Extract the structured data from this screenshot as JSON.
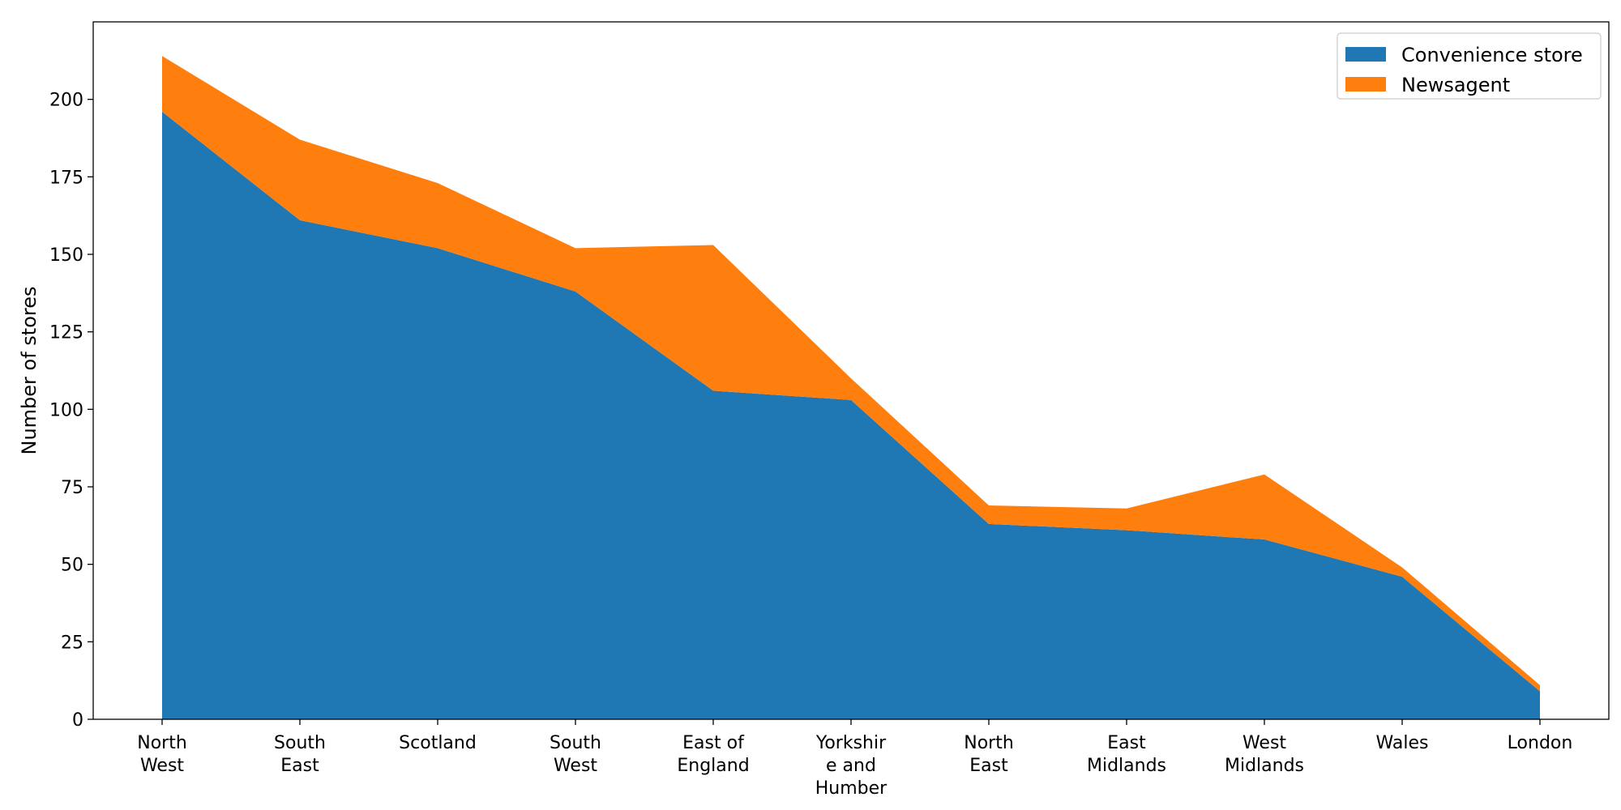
{
  "chart_data": {
    "type": "area",
    "stacked": true,
    "categories": [
      "North West",
      "South East",
      "Scotland",
      "South West",
      "East of England",
      "Yorkshire and Humber",
      "North East",
      "East Midlands",
      "West Midlands",
      "Wales",
      "London"
    ],
    "category_tick_lines": [
      [
        "North",
        "West"
      ],
      [
        "South",
        "East"
      ],
      [
        "Scotland"
      ],
      [
        "South",
        "West"
      ],
      [
        "East of",
        "England"
      ],
      [
        "Yorkshir",
        "e and",
        "Humber"
      ],
      [
        "North",
        "East"
      ],
      [
        "East",
        "Midlands"
      ],
      [
        "West",
        "Midlands"
      ],
      [
        "Wales"
      ],
      [
        "London"
      ]
    ],
    "series": [
      {
        "name": "Convenience store",
        "color": "#1f77b4",
        "values": [
          196,
          161,
          152,
          138,
          106,
          103,
          63,
          61,
          58,
          46,
          9
        ]
      },
      {
        "name": "Newsagent",
        "color": "#ff7f0e",
        "values": [
          18,
          26,
          21,
          14,
          47,
          7,
          6,
          7,
          21,
          3,
          2
        ]
      }
    ],
    "xlabel": "",
    "ylabel": "Number of stores",
    "ylim": [
      0,
      225
    ],
    "yticks": [
      0,
      25,
      50,
      75,
      100,
      125,
      150,
      175,
      200
    ],
    "grid": false,
    "legend_position": "top-right"
  }
}
